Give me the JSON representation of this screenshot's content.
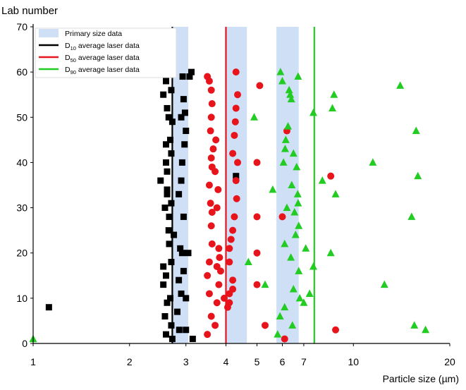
{
  "chart_data": {
    "type": "scatter",
    "title": "",
    "ylabel": "Lab number",
    "xlabel": "Particle size (µm)",
    "xscale": "log",
    "xlim": [
      1,
      20
    ],
    "ylim": [
      0,
      70
    ],
    "xticks": [
      1,
      2,
      3,
      4,
      5,
      6,
      7,
      10,
      20
    ],
    "yticks": [
      0,
      10,
      20,
      30,
      40,
      50,
      60,
      70
    ],
    "grid": false,
    "legend_position": "top-left",
    "legend": [
      {
        "label": "Primary size data",
        "kind": "band",
        "color": "#cfe0f6"
      },
      {
        "label_main": "D",
        "label_sub": "10",
        "label_rest": " average laser data",
        "kind": "line",
        "color": "#000000"
      },
      {
        "label_main": "D",
        "label_sub": "50",
        "label_rest": " average laser data",
        "kind": "line",
        "color": "#e8141b"
      },
      {
        "label_main": "D",
        "label_sub": "90",
        "label_rest": " average laser data",
        "kind": "line",
        "color": "#22cc22"
      }
    ],
    "bands": [
      {
        "name": "Primary size data",
        "from": 2.72,
        "to": 3.05,
        "color": "#cfe0f6"
      },
      {
        "name": "Primary size data",
        "from": 4.02,
        "to": 4.65,
        "color": "#cfe0f6"
      },
      {
        "name": "Primary size data",
        "from": 5.75,
        "to": 6.75,
        "color": "#cfe0f6"
      }
    ],
    "average_lines": [
      {
        "name": "D10 average laser data",
        "x": 2.72,
        "color": "#000000"
      },
      {
        "name": "D50 average laser data",
        "x": 4.0,
        "color": "#e8141b"
      },
      {
        "name": "D90 average laser data",
        "x": 7.55,
        "color": "#22cc22"
      }
    ],
    "series": [
      {
        "name": "D10",
        "marker": "square",
        "color": "#000000",
        "points": [
          [
            1.12,
            8
          ],
          [
            2.5,
            36
          ],
          [
            2.55,
            55
          ],
          [
            2.6,
            58
          ],
          [
            2.58,
            30
          ],
          [
            2.62,
            33
          ],
          [
            2.65,
            50
          ],
          [
            2.7,
            4
          ],
          [
            2.72,
            60
          ],
          [
            2.68,
            45
          ],
          [
            2.6,
            40
          ],
          [
            2.7,
            18
          ],
          [
            2.65,
            25
          ],
          [
            2.55,
            13
          ],
          [
            2.72,
            1
          ],
          [
            2.6,
            2
          ],
          [
            2.62,
            9
          ],
          [
            2.68,
            10
          ],
          [
            2.66,
            22
          ],
          [
            2.55,
            17
          ],
          [
            2.62,
            34
          ],
          [
            2.7,
            42
          ],
          [
            2.62,
            52
          ],
          [
            2.7,
            56
          ],
          [
            2.72,
            49
          ],
          [
            2.6,
            44
          ],
          [
            2.58,
            6
          ],
          [
            2.6,
            15
          ],
          [
            2.66,
            28
          ],
          [
            2.62,
            38
          ],
          [
            2.7,
            31
          ],
          [
            2.75,
            24
          ],
          [
            2.82,
            7
          ],
          [
            2.85,
            14
          ],
          [
            2.9,
            11
          ],
          [
            2.92,
            20
          ],
          [
            2.86,
            3
          ],
          [
            2.95,
            16
          ],
          [
            2.95,
            28
          ],
          [
            2.88,
            21
          ],
          [
            2.92,
            40
          ],
          [
            2.9,
            50
          ],
          [
            2.93,
            59
          ],
          [
            2.95,
            54
          ],
          [
            2.98,
            51
          ],
          [
            3.0,
            47
          ],
          [
            2.97,
            44
          ],
          [
            3.05,
            20
          ],
          [
            3.0,
            10
          ],
          [
            3.0,
            3
          ],
          [
            3.08,
            59
          ],
          [
            3.12,
            60
          ],
          [
            3.15,
            1
          ],
          [
            2.9,
            36
          ],
          [
            2.85,
            33
          ],
          [
            4.3,
            37
          ]
        ]
      },
      {
        "name": "D50",
        "marker": "circle",
        "color": "#e8141b",
        "points": [
          [
            3.5,
            59
          ],
          [
            3.55,
            58
          ],
          [
            3.6,
            56
          ],
          [
            3.62,
            53
          ],
          [
            3.6,
            50
          ],
          [
            3.58,
            47
          ],
          [
            3.65,
            43
          ],
          [
            3.6,
            41
          ],
          [
            3.62,
            39
          ],
          [
            3.55,
            35
          ],
          [
            3.58,
            31
          ],
          [
            3.62,
            29
          ],
          [
            3.6,
            26
          ],
          [
            3.62,
            22
          ],
          [
            3.55,
            18
          ],
          [
            3.5,
            15
          ],
          [
            3.55,
            11
          ],
          [
            3.6,
            6
          ],
          [
            3.5,
            2
          ],
          [
            3.7,
            4
          ],
          [
            3.75,
            9
          ],
          [
            3.8,
            13
          ],
          [
            3.75,
            17
          ],
          [
            3.8,
            21
          ],
          [
            3.82,
            19
          ],
          [
            3.85,
            16
          ],
          [
            3.78,
            34
          ],
          [
            3.75,
            30
          ],
          [
            3.72,
            45
          ],
          [
            3.7,
            38
          ],
          [
            3.95,
            10
          ],
          [
            4.05,
            8
          ],
          [
            4.1,
            9
          ],
          [
            4.2,
            12
          ],
          [
            4.3,
            60
          ],
          [
            4.35,
            55
          ],
          [
            4.3,
            52
          ],
          [
            4.28,
            49
          ],
          [
            4.25,
            46
          ],
          [
            4.2,
            42
          ],
          [
            4.35,
            40
          ],
          [
            4.3,
            36
          ],
          [
            4.32,
            32
          ],
          [
            4.25,
            28
          ],
          [
            4.2,
            25
          ],
          [
            4.15,
            23
          ],
          [
            4.1,
            21
          ],
          [
            4.1,
            18
          ],
          [
            4.2,
            14
          ],
          [
            4.1,
            11
          ],
          [
            5.1,
            57
          ],
          [
            5.0,
            40
          ],
          [
            5.0,
            28
          ],
          [
            5.0,
            20
          ],
          [
            5.0,
            13
          ],
          [
            5.3,
            4
          ],
          [
            6.1,
            1
          ],
          [
            6.0,
            28
          ],
          [
            6.2,
            47
          ],
          [
            8.5,
            37
          ],
          [
            8.8,
            3
          ]
        ]
      },
      {
        "name": "D90",
        "marker": "triangle",
        "color": "#22cc22",
        "points": [
          [
            1.0,
            1
          ],
          [
            4.7,
            18
          ],
          [
            4.9,
            50
          ],
          [
            5.3,
            13
          ],
          [
            5.6,
            34
          ],
          [
            5.8,
            2
          ],
          [
            5.9,
            6
          ],
          [
            5.92,
            60
          ],
          [
            6.0,
            58
          ],
          [
            6.1,
            8
          ],
          [
            6.1,
            22
          ],
          [
            6.05,
            40
          ],
          [
            6.12,
            43
          ],
          [
            6.15,
            45
          ],
          [
            6.2,
            30
          ],
          [
            6.25,
            48
          ],
          [
            6.3,
            56
          ],
          [
            6.35,
            55
          ],
          [
            6.4,
            54
          ],
          [
            6.38,
            19
          ],
          [
            6.42,
            35
          ],
          [
            6.45,
            4
          ],
          [
            6.5,
            12
          ],
          [
            6.5,
            42
          ],
          [
            6.55,
            29
          ],
          [
            6.6,
            24
          ],
          [
            6.65,
            39
          ],
          [
            6.7,
            33
          ],
          [
            6.72,
            31
          ],
          [
            6.72,
            59
          ],
          [
            6.75,
            26
          ],
          [
            6.75,
            16
          ],
          [
            6.8,
            10
          ],
          [
            7.0,
            9
          ],
          [
            7.1,
            21
          ],
          [
            7.3,
            11
          ],
          [
            7.5,
            17
          ],
          [
            7.5,
            51
          ],
          [
            8.0,
            36
          ],
          [
            8.5,
            20
          ],
          [
            8.6,
            52
          ],
          [
            8.7,
            55
          ],
          [
            8.8,
            33
          ],
          [
            11.5,
            40
          ],
          [
            12.5,
            13
          ],
          [
            14.0,
            57
          ],
          [
            15.2,
            28
          ],
          [
            15.5,
            4
          ],
          [
            15.7,
            47
          ],
          [
            15.9,
            37
          ],
          [
            16.8,
            3
          ]
        ]
      }
    ]
  }
}
